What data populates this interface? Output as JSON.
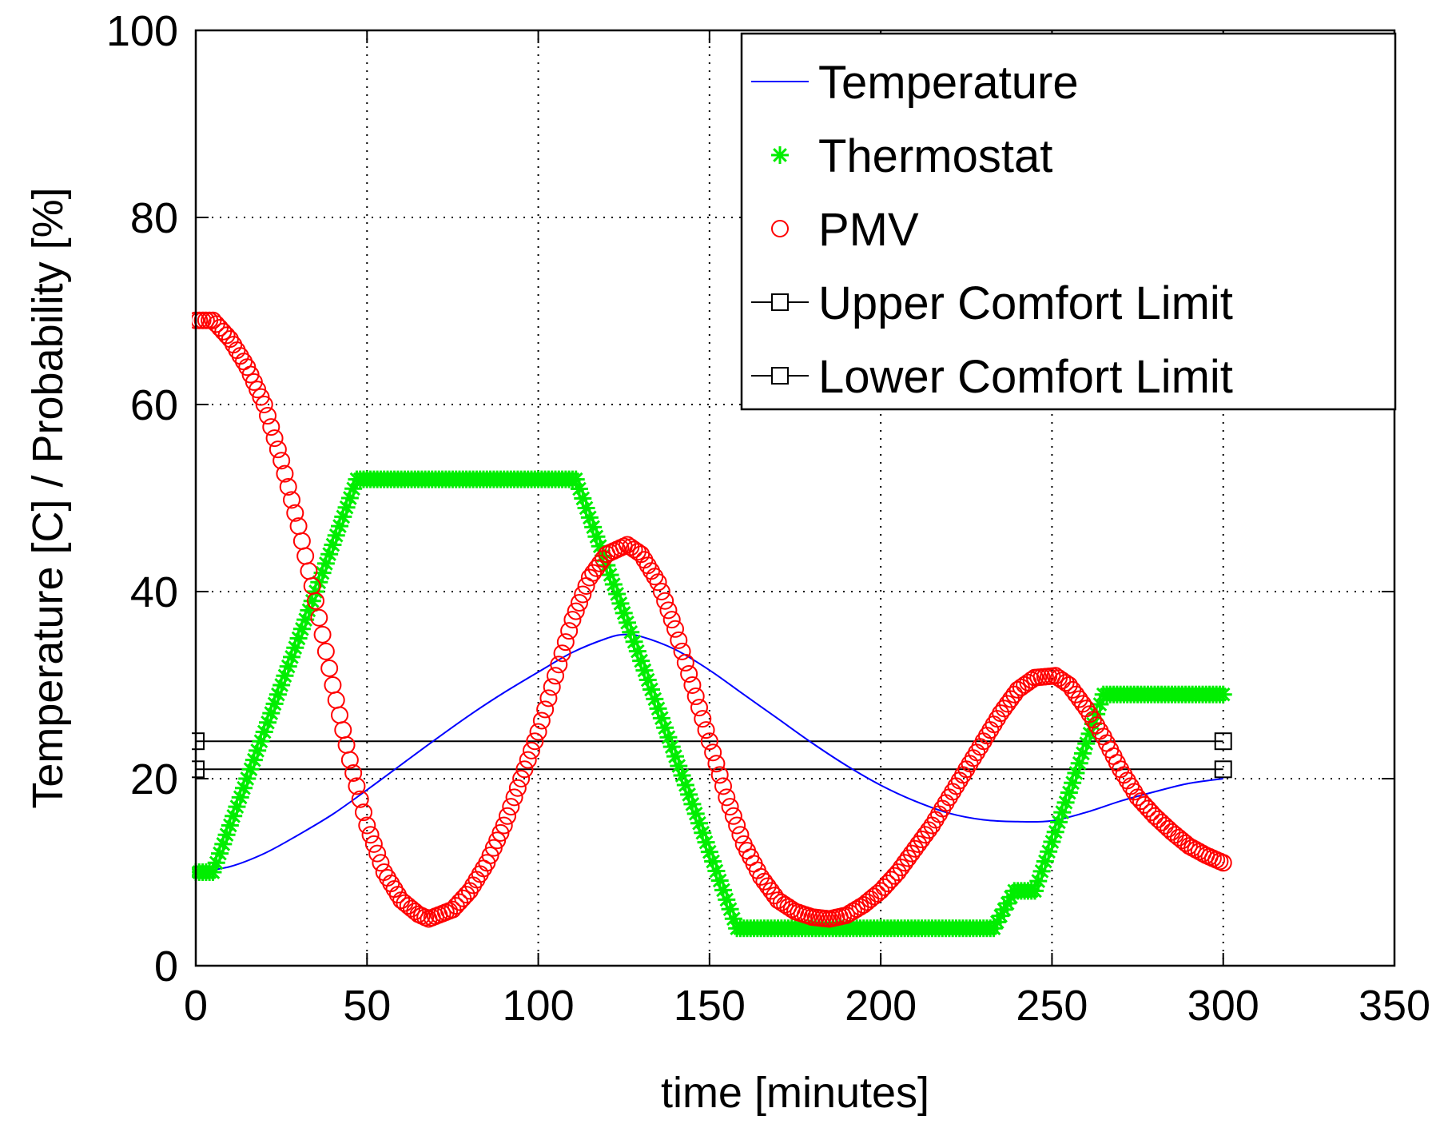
{
  "chart_data": {
    "type": "line",
    "xlabel": "time [minutes]",
    "ylabel": "Temperature [C] /  Probability [%]",
    "xlim": [
      0,
      350
    ],
    "ylim": [
      0,
      100
    ],
    "xticks": [
      0,
      50,
      100,
      150,
      200,
      250,
      300,
      350
    ],
    "yticks": [
      0,
      20,
      40,
      60,
      80,
      100
    ],
    "grid": true,
    "legend_position": "top-right",
    "colors": {
      "temperature": "#0000ff",
      "thermostat": "#00ee00",
      "pmv": "#ff0000",
      "limits": "#000000"
    },
    "series": [
      {
        "name": "Temperature",
        "style": "line",
        "x": [
          0,
          10,
          20,
          30,
          40,
          50,
          60,
          70,
          80,
          90,
          100,
          110,
          120,
          125,
          130,
          140,
          150,
          160,
          170,
          180,
          190,
          200,
          210,
          220,
          230,
          240,
          250,
          260,
          270,
          280,
          290,
          300
        ],
        "y": [
          10,
          10.6,
          12.0,
          14.0,
          16.2,
          18.8,
          21.5,
          24.2,
          26.8,
          29.2,
          31.4,
          33.5,
          35.0,
          35.4,
          35.2,
          33.8,
          31.6,
          29.0,
          26.4,
          23.8,
          21.4,
          19.3,
          17.6,
          16.3,
          15.6,
          15.4,
          15.5,
          16.4,
          17.6,
          18.6,
          19.5,
          20.0
        ]
      },
      {
        "name": "Thermostat",
        "style": "star",
        "x": [
          0,
          5,
          47,
          111,
          158,
          233,
          239,
          245,
          265,
          300
        ],
        "y": [
          10,
          10,
          52,
          52,
          4,
          4,
          8,
          8,
          29,
          29
        ]
      },
      {
        "name": "PMV",
        "style": "circle",
        "x": [
          0,
          5,
          10,
          15,
          20,
          25,
          30,
          35,
          40,
          45,
          50,
          55,
          60,
          65,
          68,
          75,
          80,
          85,
          90,
          95,
          100,
          105,
          110,
          115,
          120,
          126,
          130,
          135,
          140,
          145,
          150,
          155,
          160,
          165,
          170,
          175,
          180,
          185,
          190,
          195,
          200,
          205,
          210,
          215,
          220,
          225,
          230,
          235,
          240,
          245,
          251,
          255,
          260,
          265,
          270,
          275,
          280,
          285,
          290,
          295,
          300
        ],
        "y": [
          69,
          69,
          67,
          64,
          60,
          54,
          47,
          39,
          30,
          22,
          15,
          10,
          7,
          5.5,
          5,
          6,
          8,
          11,
          15,
          20,
          25,
          31,
          37,
          41.5,
          44,
          45,
          44,
          41,
          36,
          30,
          24,
          18,
          13,
          9.5,
          7,
          5.8,
          5.2,
          5,
          5.4,
          6.5,
          8,
          10,
          12.5,
          15,
          18,
          21,
          24,
          27,
          29.5,
          30.8,
          31,
          30,
          27.5,
          24.5,
          21,
          18,
          16,
          14.3,
          12.8,
          11.8,
          11
        ]
      },
      {
        "name": "Upper Comfort Limit",
        "style": "line-square",
        "x": [
          0,
          300
        ],
        "y": [
          24,
          24
        ]
      },
      {
        "name": "Lower Comfort Limit",
        "style": "line-square",
        "x": [
          0,
          300
        ],
        "y": [
          21,
          21
        ]
      }
    ]
  }
}
